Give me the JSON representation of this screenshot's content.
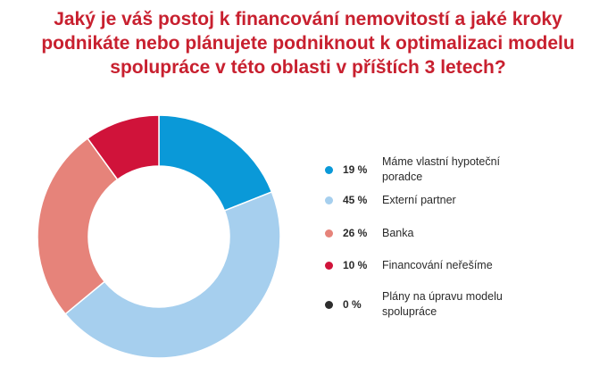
{
  "title_lines": [
    "Jaký je váš postoj k financování nemovitostí a jaké kroky",
    "podnikáte nebo plánujete podniknout k optimalizaci modelu",
    "spolupráce v této oblasti v příštích 3 letech?"
  ],
  "colors": {
    "title": "#c8202f",
    "series": [
      "#0a99d8",
      "#a6cfee",
      "#e6837a",
      "#d0133a",
      "#2d2d2d"
    ]
  },
  "legend": [
    {
      "pct": "19 %",
      "label": "Máme vlastní hypoteční poradce"
    },
    {
      "pct": "45 %",
      "label": "Externí partner"
    },
    {
      "pct": "26 %",
      "label": "Banka"
    },
    {
      "pct": "10 %",
      "label": "Financování neřešíme"
    },
    {
      "pct": "0 %",
      "label": "Plány na úpravu modelu spolupráce"
    }
  ],
  "chart_data": {
    "type": "pie",
    "variant": "donut",
    "title": "Jaký je váš postoj k financování nemovitostí a jaké kroky podnikáte nebo plánujete podniknout k optimalizaci modelu spolupráce v této oblasti v příštích 3 letech?",
    "categories": [
      "Máme vlastní hypoteční poradce",
      "Externí partner",
      "Banka",
      "Financování neřešíme",
      "Plány na úpravu modelu spolupráce"
    ],
    "values": [
      19,
      45,
      26,
      10,
      0
    ],
    "unit": "%",
    "legend_position": "right"
  }
}
